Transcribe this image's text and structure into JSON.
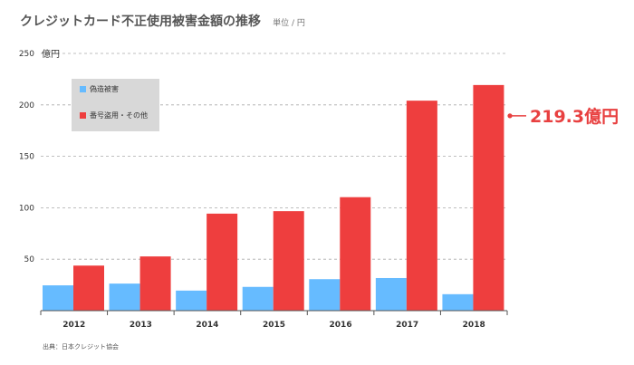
{
  "header": {
    "title": "クレジットカード不正使用被害金額の推移",
    "unit": "単位 / 円"
  },
  "chart_data": {
    "type": "bar",
    "title": "クレジットカード不正使用被害金額の推移",
    "ylabel": "億円",
    "categories": [
      "2012",
      "2013",
      "2014",
      "2015",
      "2016",
      "2017",
      "2018"
    ],
    "series": [
      {
        "name": "偽造被害",
        "color": "#66bbff",
        "values": [
          24.6,
          26.3,
          19.5,
          23.1,
          30.6,
          31.7,
          16.0
        ]
      },
      {
        "name": "番号盗用・その他",
        "color": "#ee3e3e",
        "values": [
          43.8,
          52.7,
          94.3,
          96.7,
          110.3,
          204.1,
          219.3
        ]
      }
    ],
    "ylim": [
      0,
      250
    ],
    "yticks": [
      50,
      100,
      150,
      200,
      250
    ],
    "grid": true,
    "legend": "top-left",
    "annotation": {
      "text": "219.3億円",
      "series": 1,
      "category": "2018",
      "color": "#e84040"
    }
  },
  "footer": {
    "source": "出典：日本クレジット協会"
  }
}
